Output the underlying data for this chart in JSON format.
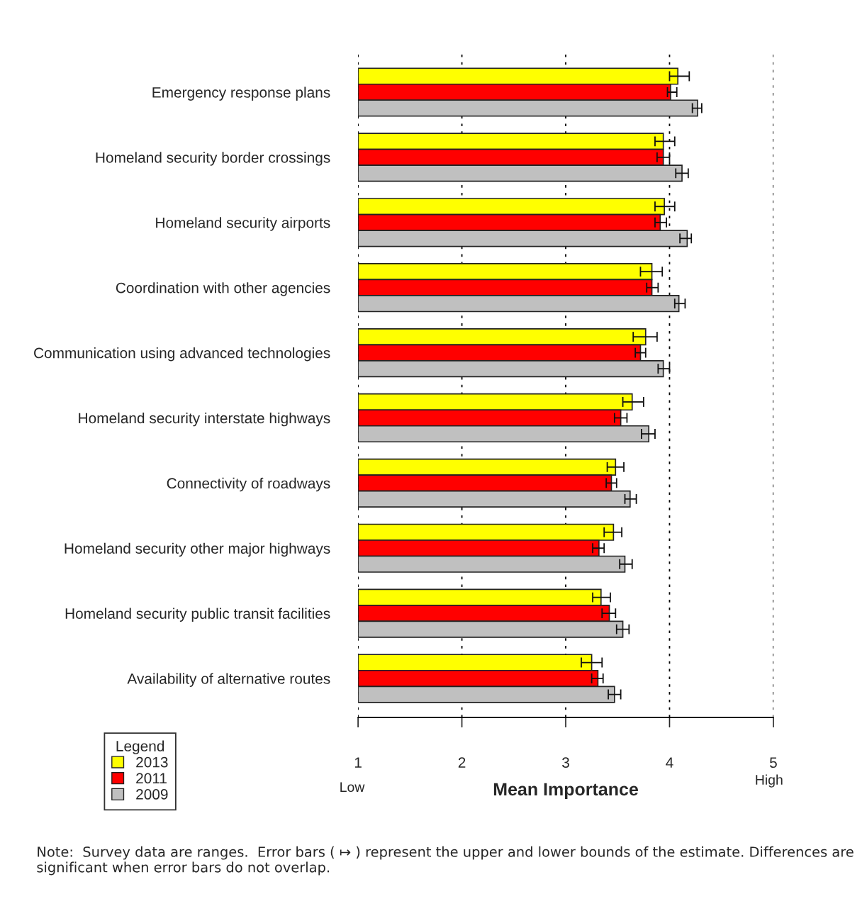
{
  "chart_data": {
    "type": "bar",
    "orientation": "horizontal",
    "categories": [
      "Emergency response plans",
      "Homeland security border crossings",
      "Homeland security airports",
      "Coordination with other agencies",
      "Communication using advanced technologies",
      "Homeland security interstate highways",
      "Connectivity of roadways",
      "Homeland security other major highways",
      "Homeland security public transit facilities",
      "Availability of alternative routes"
    ],
    "series": [
      {
        "name": "2013",
        "color": "#ffff00",
        "values": [
          4.08,
          3.94,
          3.95,
          3.83,
          3.77,
          3.64,
          3.48,
          3.46,
          3.34,
          3.25
        ],
        "errors": [
          [
            4.0,
            4.19
          ],
          [
            3.86,
            4.05
          ],
          [
            3.86,
            4.05
          ],
          [
            3.72,
            3.93
          ],
          [
            3.65,
            3.88
          ],
          [
            3.55,
            3.75
          ],
          [
            3.4,
            3.56
          ],
          [
            3.37,
            3.54
          ],
          [
            3.26,
            3.43
          ],
          [
            3.15,
            3.35
          ]
        ]
      },
      {
        "name": "2011",
        "color": "#ff0000",
        "values": [
          4.01,
          3.94,
          3.91,
          3.83,
          3.72,
          3.53,
          3.44,
          3.32,
          3.42,
          3.31
        ],
        "errors": [
          [
            3.98,
            4.07
          ],
          [
            3.88,
            4.0
          ],
          [
            3.86,
            3.97
          ],
          [
            3.78,
            3.89
          ],
          [
            3.67,
            3.77
          ],
          [
            3.47,
            3.59
          ],
          [
            3.39,
            3.49
          ],
          [
            3.26,
            3.37
          ],
          [
            3.35,
            3.48
          ],
          [
            3.25,
            3.36
          ]
        ]
      },
      {
        "name": "2009",
        "color": "#c0c0c0",
        "values": [
          4.27,
          4.12,
          4.17,
          4.09,
          3.94,
          3.8,
          3.62,
          3.57,
          3.55,
          3.47
        ],
        "errors": [
          [
            4.22,
            4.31
          ],
          [
            4.06,
            4.18
          ],
          [
            4.1,
            4.21
          ],
          [
            4.05,
            4.15
          ],
          [
            3.89,
            4.0
          ],
          [
            3.73,
            3.86
          ],
          [
            3.57,
            3.68
          ],
          [
            3.52,
            3.64
          ],
          [
            3.49,
            3.61
          ],
          [
            3.41,
            3.53
          ]
        ]
      }
    ],
    "xlim": [
      1,
      5
    ],
    "xticks": [
      1,
      2,
      3,
      4,
      5
    ],
    "grid": "x",
    "xlabel": "Mean Importance",
    "legend": "bottom left",
    "legend_title": "Legend",
    "annotations": [
      "Low",
      "High",
      "Note:  Survey data are ranges.  Error bars ( ↦ ) represent the upper and lower bounds of the estimate. Differences are significant when error bars do not overlap."
    ]
  }
}
